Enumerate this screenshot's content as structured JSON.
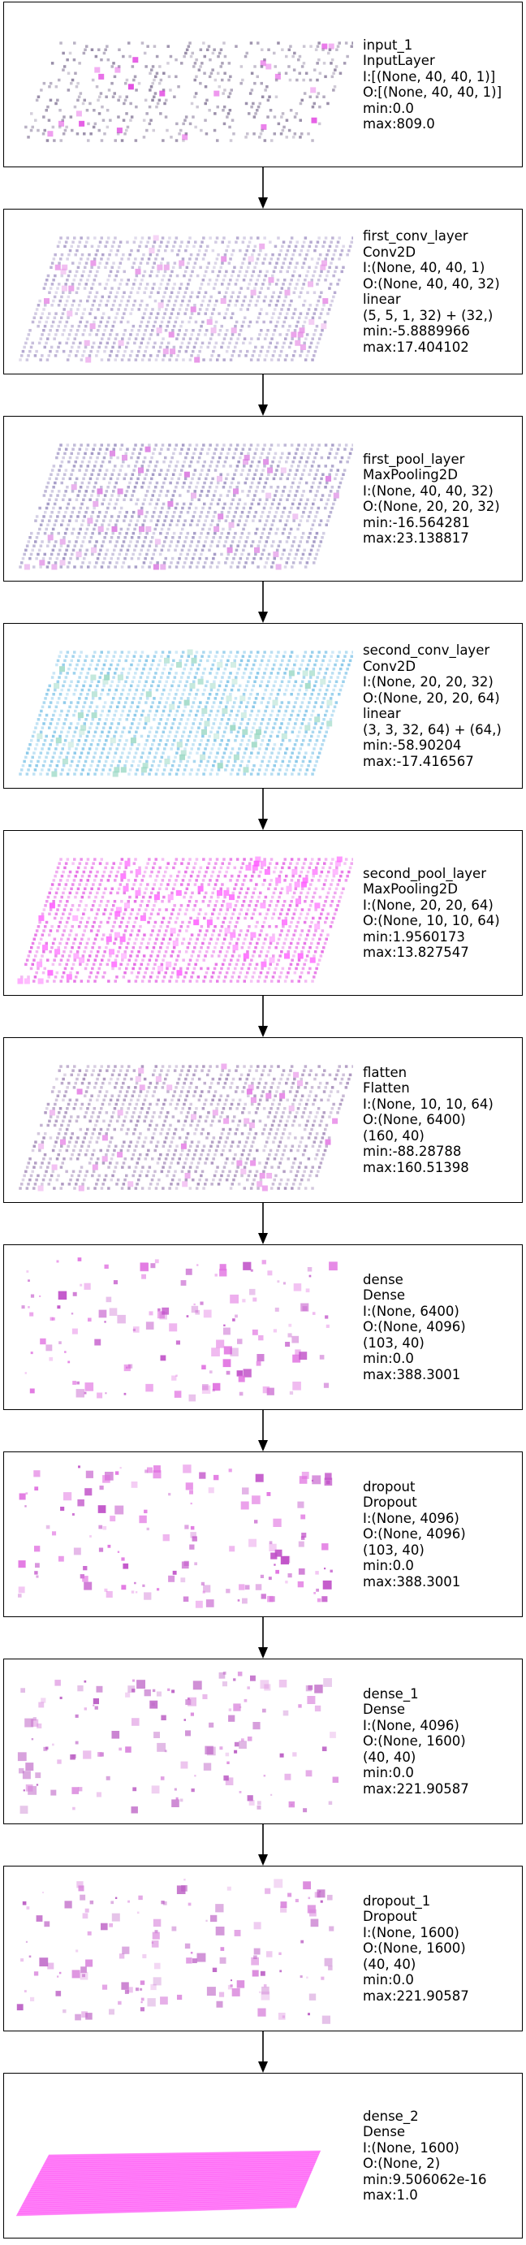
{
  "layers": [
    {
      "name": "input_1",
      "type": "InputLayer",
      "lines": [
        "I:[(None, 40, 40, 1)]",
        "O:[(None, 40, 40, 1)]",
        "min:0.0",
        "max:809.0"
      ],
      "viz": {
        "kind": "grid",
        "base": "#8a7d9c",
        "accent": "#e040e0",
        "density": 0.3
      }
    },
    {
      "name": "first_conv_layer",
      "type": "Conv2D",
      "lines": [
        "I:(None, 40, 40, 1)",
        "O:(None, 40, 40, 32)",
        "linear",
        "(5, 5, 1, 32) + (32,)",
        "min:-5.8889966",
        "max:17.404102"
      ],
      "viz": {
        "kind": "grid",
        "base": "#a89ac8",
        "accent": "#e58ae5",
        "density": 0.85
      }
    },
    {
      "name": "first_pool_layer",
      "type": "MaxPooling2D",
      "lines": [
        "I:(None, 40, 40, 32)",
        "O:(None, 20, 20, 32)",
        "min:-16.564281",
        "max:23.138817"
      ],
      "viz": {
        "kind": "grid",
        "base": "#9a8fc0",
        "accent": "#d977e0",
        "density": 0.9
      }
    },
    {
      "name": "second_conv_layer",
      "type": "Conv2D",
      "lines": [
        "I:(None, 20, 20, 32)",
        "O:(None, 20, 20, 64)",
        "linear",
        "(3, 3, 32, 64) + (64,)",
        "min:-58.90204",
        "max:-17.416567"
      ],
      "viz": {
        "kind": "grid",
        "base": "#7fc4e8",
        "accent": "#9ad8c4",
        "density": 0.95
      }
    },
    {
      "name": "second_pool_layer",
      "type": "MaxPooling2D",
      "lines": [
        "I:(None, 20, 20, 64)",
        "O:(None, 10, 10, 64)",
        "min:1.9560173",
        "max:13.827547"
      ],
      "viz": {
        "kind": "grid",
        "base": "#e35fe3",
        "accent": "#ff5cff",
        "density": 0.9
      }
    },
    {
      "name": "flatten",
      "type": "Flatten",
      "lines": [
        "I:(None, 10, 10, 64)",
        "O:(None, 6400)",
        "(160, 40)",
        "min:-88.28788",
        "max:160.51398"
      ],
      "viz": {
        "kind": "grid",
        "base": "#a38ab8",
        "accent": "#e47ae4",
        "density": 0.8
      }
    },
    {
      "name": "dense",
      "type": "Dense",
      "lines": [
        "I:(None, 6400)",
        "O:(None, 4096)",
        "(103, 40)",
        "min:0.0",
        "max:388.3001"
      ],
      "viz": {
        "kind": "scatter",
        "base": "#e070e0",
        "accent": "#c050c8",
        "density": 0.12
      }
    },
    {
      "name": "dropout",
      "type": "Dropout",
      "lines": [
        "I:(None, 4096)",
        "O:(None, 4096)",
        "(103, 40)",
        "min:0.0",
        "max:388.3001"
      ],
      "viz": {
        "kind": "scatter",
        "base": "#e070e0",
        "accent": "#c050c8",
        "density": 0.12
      }
    },
    {
      "name": "dense_1",
      "type": "Dense",
      "lines": [
        "I:(None, 4096)",
        "O:(None, 1600)",
        "(40, 40)",
        "min:0.0",
        "max:221.90587"
      ],
      "viz": {
        "kind": "scatter",
        "base": "#d985dc",
        "accent": "#bb5ec4",
        "density": 0.1
      }
    },
    {
      "name": "dropout_1",
      "type": "Dropout",
      "lines": [
        "I:(None, 1600)",
        "O:(None, 1600)",
        "(40, 40)",
        "min:0.0",
        "max:221.90587"
      ],
      "viz": {
        "kind": "scatter",
        "base": "#d985dc",
        "accent": "#bb5ec4",
        "density": 0.1
      }
    },
    {
      "name": "dense_2",
      "type": "Dense",
      "lines": [
        "I:(None, 1600)",
        "O:(None, 2)",
        "min:9.506062e-16",
        "max:1.0"
      ],
      "viz": {
        "kind": "solid",
        "base": "#ff6cf7",
        "accent": "#ff40f5",
        "density": 1.0
      }
    }
  ]
}
